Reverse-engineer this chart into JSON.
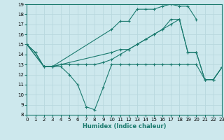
{
  "xlabel": "Humidex (Indice chaleur)",
  "xlim": [
    0,
    23
  ],
  "ylim": [
    8,
    19
  ],
  "xticks": [
    0,
    1,
    2,
    3,
    4,
    5,
    6,
    7,
    8,
    9,
    10,
    11,
    12,
    13,
    14,
    15,
    16,
    17,
    18,
    19,
    20,
    21,
    22,
    23
  ],
  "yticks": [
    8,
    9,
    10,
    11,
    12,
    13,
    14,
    15,
    16,
    17,
    18,
    19
  ],
  "bg_color": "#cde8ed",
  "line_color": "#1a7a6e",
  "grid_color": "#b8d8de",
  "series": [
    {
      "x": [
        0,
        1,
        2,
        3,
        4,
        5,
        6,
        7,
        8,
        9,
        10,
        11,
        12,
        13,
        14,
        15,
        16,
        17,
        18,
        19,
        20,
        21,
        22,
        23
      ],
      "y": [
        15,
        14.2,
        12.8,
        12.8,
        12.8,
        12.0,
        11.0,
        8.8,
        8.5,
        10.7,
        13.0,
        13.0,
        13.0,
        13.0,
        13.0,
        13.0,
        13.0,
        13.0,
        13.0,
        13.0,
        13.0,
        11.5,
        11.5,
        12.7
      ]
    },
    {
      "x": [
        0,
        1,
        2,
        3,
        4,
        5,
        6,
        7,
        8,
        9,
        10,
        11,
        12,
        13,
        14,
        15,
        16,
        17,
        18,
        19,
        20,
        21,
        22,
        23
      ],
      "y": [
        15,
        14.2,
        12.8,
        12.8,
        13.0,
        13.0,
        13.0,
        13.0,
        13.0,
        13.2,
        13.5,
        14.0,
        14.5,
        15.0,
        15.5,
        16.0,
        16.5,
        17.0,
        17.5,
        14.2,
        14.2,
        11.5,
        11.5,
        12.7
      ]
    },
    {
      "x": [
        0,
        2,
        3,
        10,
        11,
        12,
        13,
        14,
        15,
        16,
        17,
        18,
        19,
        20
      ],
      "y": [
        15,
        12.8,
        12.8,
        16.5,
        17.3,
        17.3,
        18.5,
        18.5,
        18.5,
        18.8,
        19.0,
        18.8,
        18.8,
        17.5
      ]
    },
    {
      "x": [
        0,
        2,
        3,
        10,
        11,
        12,
        13,
        14,
        15,
        16,
        17,
        18,
        19,
        20,
        21,
        22,
        23
      ],
      "y": [
        15,
        12.8,
        12.8,
        14.2,
        14.5,
        14.5,
        15.0,
        15.5,
        16.0,
        16.5,
        17.5,
        17.5,
        14.2,
        14.2,
        11.5,
        11.5,
        12.7
      ]
    }
  ]
}
